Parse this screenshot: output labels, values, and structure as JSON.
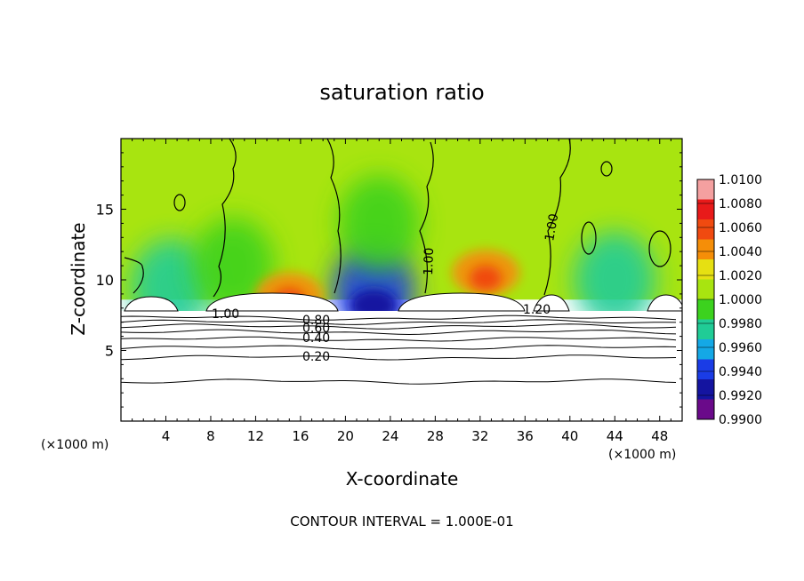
{
  "chart_data": {
    "type": "heatmap",
    "title": "saturation ratio",
    "xlabel": "X-coordinate",
    "ylabel": "Z-coordinate",
    "x_unit_left": "(×1000 m)",
    "x_unit_right": "(×1000 m)",
    "xlim": [
      0,
      50
    ],
    "ylim": [
      0,
      20
    ],
    "xticks": [
      4,
      8,
      12,
      16,
      20,
      24,
      28,
      32,
      36,
      40,
      44,
      48
    ],
    "yticks": [
      5,
      10,
      15
    ],
    "colorbar": {
      "levels": [
        "1.0100",
        "1.0080",
        "1.0060",
        "1.0040",
        "1.0020",
        "1.0000",
        "0.9980",
        "0.9960",
        "0.9940",
        "0.9920",
        "0.9900"
      ],
      "colors": [
        "#f4a0a0",
        "#e81a1a",
        "#f04a10",
        "#f58e08",
        "#e6e012",
        "#a8e410",
        "#3cd21e",
        "#20cc96",
        "#14a8e6",
        "#1a3ce6",
        "#1414a0",
        "#6a0a8a"
      ]
    },
    "contour_labels": [
      "1.00",
      "1.00",
      "1.00",
      "1.20",
      "0.80",
      "0.60",
      "0.40",
      "0.20"
    ],
    "contour_interval_text": "CONTOUR INTERVAL = 1.000E-01",
    "fields": {
      "background_value": 1.0005,
      "cloud_top_z": 8.6,
      "cloud_base_z": 7.8,
      "subsat_blobs": [
        {
          "x": 4.5,
          "z": 9.5,
          "value": 0.996
        },
        {
          "x": 10,
          "z": 11,
          "value": 0.998
        },
        {
          "x": 22.5,
          "z": 9.2,
          "value": 0.993
        },
        {
          "x": 23,
          "z": 14,
          "value": 0.998
        },
        {
          "x": 44,
          "z": 10,
          "value": 0.996
        }
      ],
      "supersat_blobs": [
        {
          "x": 32.5,
          "z": 10.5,
          "value": 1.005
        },
        {
          "x": 15,
          "z": 8.9,
          "value": 1.004
        }
      ],
      "stable_isolines_z": [
        2.8,
        4.5,
        5.2,
        5.8,
        6.3,
        6.7,
        7.0,
        7.3
      ]
    }
  }
}
